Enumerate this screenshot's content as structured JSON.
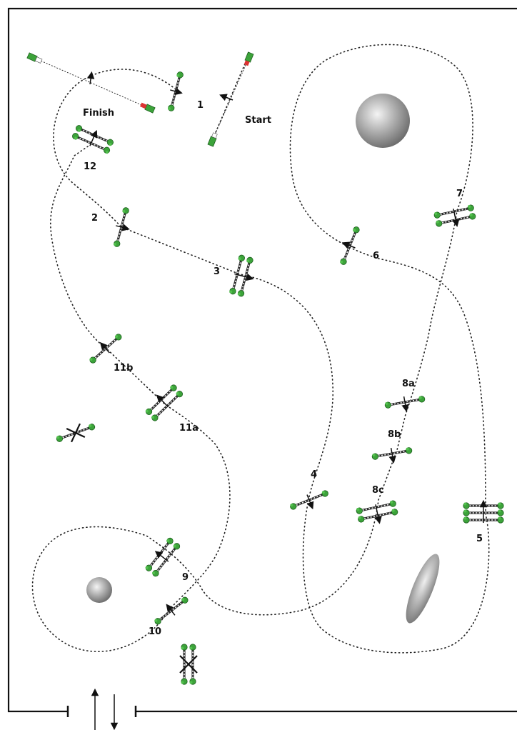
{
  "labels": {
    "start": "Start",
    "finish": "Finish"
  },
  "obstacles": [
    {
      "id": "ob-1",
      "number": "1"
    },
    {
      "id": "ob-2",
      "number": "2"
    },
    {
      "id": "ob-3",
      "number": "3"
    },
    {
      "id": "ob-4",
      "number": "4"
    },
    {
      "id": "ob-5",
      "number": "5"
    },
    {
      "id": "ob-6",
      "number": "6"
    },
    {
      "id": "ob-7",
      "number": "7"
    },
    {
      "id": "ob-8a",
      "number": "8a"
    },
    {
      "id": "ob-8b",
      "number": "8b"
    },
    {
      "id": "ob-8c",
      "number": "8c"
    },
    {
      "id": "ob-9",
      "number": "9"
    },
    {
      "id": "ob-10",
      "number": "10"
    },
    {
      "id": "ob-11a",
      "number": "11a"
    },
    {
      "id": "ob-11b",
      "number": "11b"
    },
    {
      "id": "ob-12",
      "number": "12"
    }
  ],
  "colors": {
    "border": "#111111",
    "stand": "#3ca33a",
    "stand_flag": "#d33333",
    "decoration": "#9a9a9a"
  }
}
